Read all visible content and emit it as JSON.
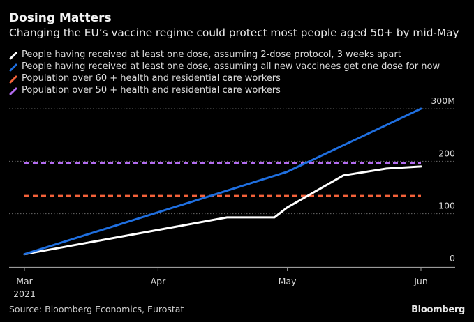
{
  "header": {
    "title": "Dosing Matters",
    "subtitle": "Changing the EU’s vaccine regime could protect most people aged 50+ by mid-May"
  },
  "footer": {
    "source": "Source: Bloomberg Economics, Eurostat",
    "brand": "Bloomberg"
  },
  "chart_data": {
    "type": "line",
    "title": "Dosing Matters",
    "subtitle": "Changing the EU’s vaccine regime could protect most people aged 50+ by mid-May",
    "xlabel": "",
    "ylabel": "",
    "x_domain": [
      "2021-03-01",
      "2021-06-01"
    ],
    "x_ticks": [
      {
        "date": "2021-03-01",
        "label": "Mar",
        "sublabel": "2021"
      },
      {
        "date": "2021-04-01",
        "label": "Apr",
        "sublabel": ""
      },
      {
        "date": "2021-05-01",
        "label": "May",
        "sublabel": ""
      },
      {
        "date": "2021-06-01",
        "label": "Jun",
        "sublabel": ""
      }
    ],
    "ylim": [
      0,
      300
    ],
    "y_ticks": [
      {
        "value": 0,
        "label": "0"
      },
      {
        "value": 100,
        "label": "100"
      },
      {
        "value": 200,
        "label": "200"
      },
      {
        "value": 300,
        "label": "300M"
      }
    ],
    "y_unit": "millions",
    "grid": true,
    "legend_position": "top-left",
    "series": [
      {
        "name": "People having received at least one dose, assuming 2-dose protocol, 3 weeks apart",
        "color": "#ffffff",
        "style": "solid",
        "points": [
          {
            "x": "2021-03-01",
            "y": 23
          },
          {
            "x": "2021-04-17",
            "y": 93
          },
          {
            "x": "2021-04-28",
            "y": 93
          },
          {
            "x": "2021-05-01",
            "y": 112
          },
          {
            "x": "2021-05-14",
            "y": 173
          },
          {
            "x": "2021-05-24",
            "y": 186
          },
          {
            "x": "2021-06-01",
            "y": 190
          }
        ]
      },
      {
        "name": "People having received at least one dose, assuming all new vaccinees get one dose for now",
        "color": "#1f6fe0",
        "style": "solid",
        "points": [
          {
            "x": "2021-03-01",
            "y": 23
          },
          {
            "x": "2021-05-01",
            "y": 180
          },
          {
            "x": "2021-06-01",
            "y": 300
          }
        ]
      },
      {
        "name": "Population over 60 + health and residential care workers",
        "color": "#f4623a",
        "style": "dashed",
        "points": [
          {
            "x": "2021-03-01",
            "y": 134
          },
          {
            "x": "2021-06-01",
            "y": 134
          }
        ]
      },
      {
        "name": "Population over 50 + health and residential care workers",
        "color": "#b36cf0",
        "style": "dashed",
        "points": [
          {
            "x": "2021-03-01",
            "y": 197
          },
          {
            "x": "2021-06-01",
            "y": 197
          }
        ]
      }
    ]
  }
}
